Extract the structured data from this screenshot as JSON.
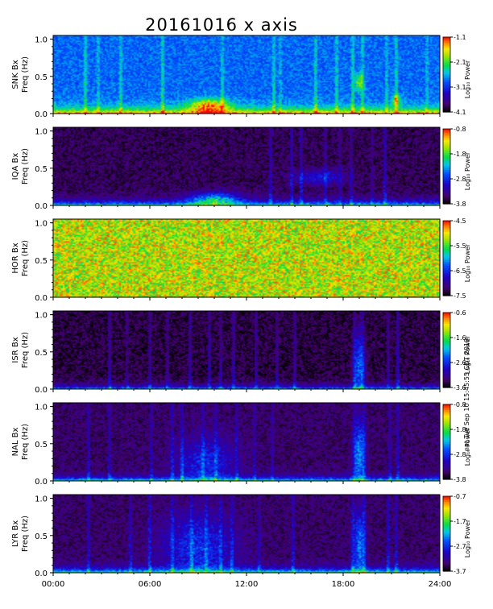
{
  "chart_data": {
    "type": "heatmap",
    "title": "20161016 x axis",
    "stamp": "nat Tue Sep 10 15:45:55 CDT 2019",
    "x": {
      "tick_labels": [
        "00:00",
        "06:00",
        "12:00",
        "18:00",
        "24:00"
      ],
      "ticks_hours": [
        0,
        6,
        12,
        18,
        24
      ],
      "range_hours": [
        0,
        24
      ]
    },
    "panels": [
      {
        "station": "SNK Bx",
        "ylabel": "Freq (Hz)",
        "cblabel": "Log₁₀ Power",
        "y_ticks": [
          "0.0",
          "0.5",
          "1.0"
        ],
        "y_range": [
          0,
          1.05
        ],
        "cb_ticks": [
          "-1.1",
          "-2.1",
          "-3.1",
          "-4.1"
        ],
        "cb_range": [
          -4.1,
          -1.1
        ],
        "noise": 0.42,
        "band": {
          "level": 0.55,
          "width": 0.06
        },
        "blobs": [
          {
            "t": 9.7,
            "f": 0.1,
            "dt": 1.2,
            "df": 0.1,
            "a": 0.45
          },
          {
            "t": 19.0,
            "f": 0.42,
            "dt": 0.25,
            "df": 0.12,
            "a": 0.3
          },
          {
            "t": 21.3,
            "f": 0.18,
            "dt": 0.25,
            "df": 0.08,
            "a": 0.35
          }
        ],
        "streaks": [
          2.0,
          2.8,
          4.2,
          6.8,
          10.5,
          13.7,
          14.1,
          16.3,
          17.6,
          18.6,
          19.2,
          20.7,
          21.3,
          23.2
        ]
      },
      {
        "station": "IQA Bx",
        "ylabel": "Freq (Hz)",
        "cblabel": "Log₁₀ Power",
        "y_ticks": [
          "0.0",
          "0.5",
          "1.0"
        ],
        "y_range": [
          0,
          1.05
        ],
        "cb_ticks": [
          "-0.8",
          "-1.8",
          "-2.8",
          "-3.8"
        ],
        "cb_range": [
          -3.8,
          -0.8
        ],
        "noise": 0.08,
        "band": {
          "level": 0.55,
          "width": 0.05
        },
        "blobs": [
          {
            "t": 10.0,
            "f": 0.08,
            "dt": 1.5,
            "df": 0.1,
            "a": 0.4
          },
          {
            "t": 16.5,
            "f": 0.38,
            "dt": 1.6,
            "df": 0.1,
            "a": 0.22
          }
        ],
        "streaks": [
          13.5,
          14.8,
          15.4,
          16.9,
          17.8,
          18.5,
          19.8,
          20.6
        ]
      },
      {
        "station": "HOR Bx",
        "ylabel": "Freq (Hz)",
        "cblabel": "Log₁₀ Power",
        "y_ticks": [
          "0.0",
          "0.5",
          "1.0"
        ],
        "y_range": [
          0,
          1.05
        ],
        "cb_ticks": [
          "-4.5",
          "-5.5",
          "-6.5",
          "-7.5"
        ],
        "cb_range": [
          -7.5,
          -4.5
        ],
        "noise": 0.78,
        "band": {
          "level": 0.0,
          "width": 0.0
        },
        "blobs": [],
        "streaks": []
      },
      {
        "station": "ISR Bx",
        "ylabel": "Freq (Hz)",
        "cblabel": "Log₁₀ Power",
        "y_ticks": [
          "0.0",
          "0.5",
          "1.0"
        ],
        "y_range": [
          0,
          1.05
        ],
        "cb_ticks": [
          "-0.6",
          "-1.6",
          "-2.6",
          "-3.6"
        ],
        "cb_range": [
          -3.6,
          -0.6
        ],
        "noise": 0.06,
        "band": {
          "level": 0.45,
          "width": 0.04
        },
        "blobs": [
          {
            "t": 19.0,
            "f": 0.3,
            "dt": 0.35,
            "df": 0.45,
            "a": 0.35
          }
        ],
        "streaks": [
          3.5,
          4.6,
          6.0,
          7.1,
          8.5,
          9.7,
          10.4,
          11.2,
          12.6,
          13.9,
          15.0,
          18.7,
          19.2,
          20.8,
          21.4
        ]
      },
      {
        "station": "NAL Bx",
        "ylabel": "Freq (Hz)",
        "cblabel": "Log₁₀ Power",
        "y_ticks": [
          "0.0",
          "0.5",
          "1.0"
        ],
        "y_range": [
          0,
          1.05
        ],
        "cb_ticks": [
          "-0.8",
          "-1.8",
          "-2.8",
          "-3.8"
        ],
        "cb_range": [
          -3.8,
          -0.8
        ],
        "noise": 0.1,
        "band": {
          "level": 0.55,
          "width": 0.04
        },
        "blobs": [
          {
            "t": 9.5,
            "f": 0.25,
            "dt": 1.8,
            "df": 0.35,
            "a": 0.22
          },
          {
            "t": 19.0,
            "f": 0.35,
            "dt": 0.35,
            "df": 0.45,
            "a": 0.38
          }
        ],
        "streaks": [
          2.2,
          3.5,
          6.1,
          7.4,
          8.0,
          9.3,
          10.1,
          11.4,
          12.5,
          13.6,
          18.7,
          19.3,
          20.9,
          21.4
        ]
      },
      {
        "station": "LYR Bx",
        "ylabel": "Freq (Hz)",
        "cblabel": "Log₁₀ Power",
        "y_ticks": [
          "0.0",
          "0.5",
          "1.0"
        ],
        "y_range": [
          0,
          1.05
        ],
        "cb_ticks": [
          "-0.7",
          "-1.7",
          "-2.7",
          "-3.7"
        ],
        "cb_range": [
          -3.7,
          -0.7
        ],
        "noise": 0.1,
        "band": {
          "level": 0.55,
          "width": 0.05
        },
        "blobs": [
          {
            "t": 9.0,
            "f": 0.35,
            "dt": 2.2,
            "df": 0.45,
            "a": 0.25
          },
          {
            "t": 19.0,
            "f": 0.35,
            "dt": 0.35,
            "df": 0.45,
            "a": 0.36
          }
        ],
        "streaks": [
          2.2,
          4.8,
          6.0,
          7.4,
          8.6,
          9.5,
          10.4,
          11.1,
          12.8,
          14.9,
          18.6,
          19.3,
          20.8,
          21.3
        ]
      }
    ]
  }
}
